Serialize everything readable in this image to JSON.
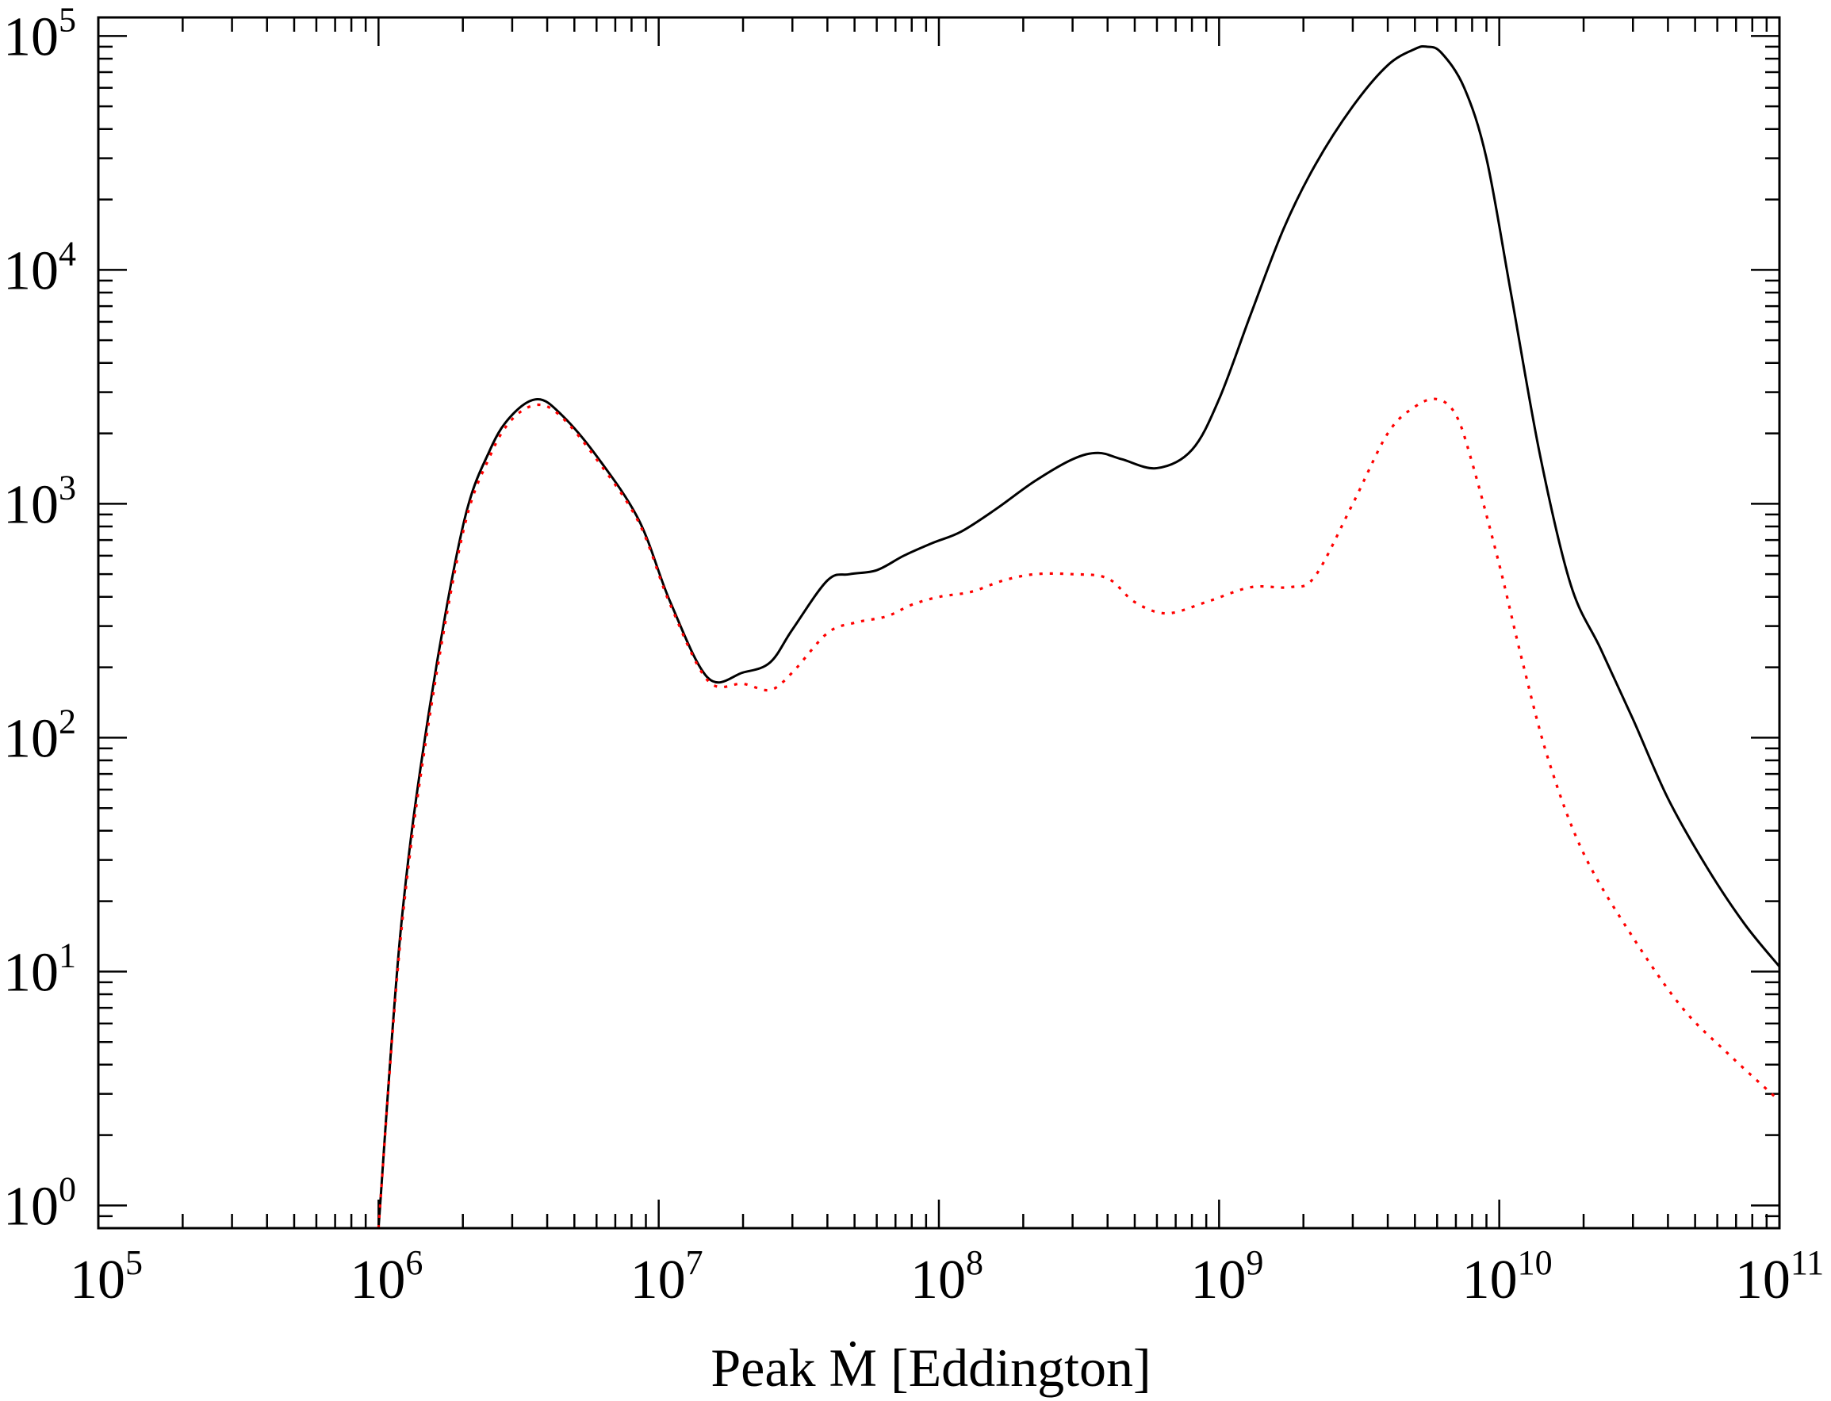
{
  "chart_data": {
    "type": "line",
    "title": "",
    "xlabel": "Peak Ṁ    [Eddington]",
    "ylabel": "",
    "x_scale": "log",
    "y_scale": "log",
    "xlim": [
      100000,
      100000000000
    ],
    "ylim": [
      0.8,
      120000
    ],
    "x_tick_labels": [
      {
        "base": "10",
        "exp": "5",
        "value": 100000
      },
      {
        "base": "10",
        "exp": "6",
        "value": 1000000
      },
      {
        "base": "10",
        "exp": "7",
        "value": 10000000
      },
      {
        "base": "10",
        "exp": "8",
        "value": 100000000
      },
      {
        "base": "10",
        "exp": "9",
        "value": 1000000000
      },
      {
        "base": "10",
        "exp": "10",
        "value": 10000000000
      },
      {
        "base": "10",
        "exp": "11",
        "value": 100000000000
      }
    ],
    "y_tick_labels": [
      {
        "base": "10",
        "exp": "0",
        "value": 1
      },
      {
        "base": "10",
        "exp": "1",
        "value": 10
      },
      {
        "base": "10",
        "exp": "2",
        "value": 100
      },
      {
        "base": "10",
        "exp": "3",
        "value": 1000
      },
      {
        "base": "10",
        "exp": "4",
        "value": 10000
      },
      {
        "base": "10",
        "exp": "5",
        "value": 100000
      }
    ],
    "grid": false,
    "legend": "none",
    "series": [
      {
        "color": "#000000",
        "style": "solid",
        "x": [
          1000000,
          1200000,
          1500000,
          2000000,
          2500000,
          3000000,
          3700000,
          4500000,
          6000000,
          8500000,
          11000000,
          15000000,
          20000000,
          25000000,
          30000000,
          40000000,
          48000000,
          60000000,
          75000000,
          95000000,
          120000000,
          160000000,
          220000000,
          300000000,
          370000000,
          450000000,
          600000000,
          800000000,
          1000000000,
          1300000000,
          1700000000,
          2200000000,
          3000000000,
          4000000000,
          5000000000,
          5500000000,
          6200000000,
          7500000000,
          9000000000,
          11000000000,
          14000000000,
          18000000000,
          23000000000,
          30000000000,
          40000000000,
          55000000000,
          75000000000,
          100000000000
        ],
        "y": [
          0.8,
          15,
          120,
          800,
          1700,
          2400,
          2800,
          2400,
          1600,
          850,
          380,
          180,
          190,
          210,
          290,
          470,
          500,
          520,
          600,
          680,
          760,
          950,
          1250,
          1550,
          1650,
          1550,
          1420,
          1700,
          2800,
          6500,
          15000,
          28000,
          50000,
          75000,
          88000,
          90000,
          85000,
          60000,
          30000,
          8000,
          1600,
          450,
          240,
          120,
          55,
          28,
          16,
          10.5
        ]
      },
      {
        "color": "#ff0000",
        "style": "dotted",
        "x": [
          1000000,
          1200000,
          1500000,
          2000000,
          2500000,
          3000000,
          3700000,
          4500000,
          6000000,
          8500000,
          11000000,
          15000000,
          20000000,
          25000000,
          30000000,
          40000000,
          50000000,
          65000000,
          80000000,
          100000000,
          130000000,
          170000000,
          220000000,
          300000000,
          400000000,
          500000000,
          650000000,
          900000000,
          1300000000,
          1800000000,
          2200000000,
          3000000000,
          4000000000,
          5000000000,
          6000000000,
          7000000000,
          8000000000,
          10000000000,
          12000000000,
          15000000000,
          20000000000,
          30000000000,
          45000000000,
          65000000000,
          100000000000
        ],
        "y": [
          0.8,
          14,
          110,
          750,
          1600,
          2300,
          2650,
          2350,
          1550,
          830,
          370,
          175,
          170,
          160,
          190,
          280,
          310,
          330,
          370,
          400,
          420,
          470,
          500,
          500,
          480,
          380,
          340,
          380,
          440,
          440,
          490,
          1000,
          2000,
          2600,
          2800,
          2400,
          1500,
          550,
          220,
          80,
          32,
          14,
          7,
          4.5,
          2.8
        ]
      }
    ]
  }
}
